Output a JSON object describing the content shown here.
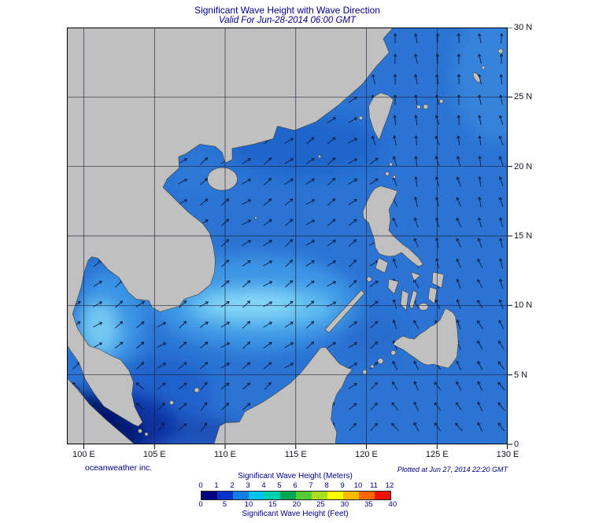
{
  "header": {
    "title": "Significant Wave Height with Wave Direction",
    "subtitle": "Valid For Jun-28-2014 06:00 GMT"
  },
  "axes": {
    "lat_labels": [
      "30 N",
      "25 N",
      "20 N",
      "15 N",
      "10 N",
      "5 N",
      "0"
    ],
    "lon_labels": [
      "100 E",
      "105 E",
      "110 E",
      "115 E",
      "120 E",
      "125 E",
      "130 E"
    ]
  },
  "footer": {
    "credit": "oceanweather inc.",
    "plotted": "Plotted at Jun 27, 2014 22:20 GMT"
  },
  "legend": {
    "meters_label": "Significant Wave Height (Meters)",
    "feet_label": "Significant Wave Height (Feet)",
    "meters_ticks": [
      "0",
      "1",
      "2",
      "3",
      "4",
      "5",
      "6",
      "7",
      "8",
      "9",
      "10",
      "11",
      "12"
    ],
    "feet_ticks": [
      "0",
      "5",
      "10",
      "15",
      "20",
      "25",
      "30",
      "35",
      "40"
    ],
    "colors": [
      "#000080",
      "#0033cc",
      "#0f7fe6",
      "#00c3f0",
      "#00cfae",
      "#00a651",
      "#55cc33",
      "#aadd22",
      "#ffff00",
      "#ffbb00",
      "#ff6600",
      "#ee1100"
    ],
    "meters_range": [
      0,
      12
    ],
    "feet_range": [
      0,
      40
    ]
  },
  "map_meta": {
    "lon_range_deg_e": [
      98.8,
      130
    ],
    "lat_range_deg_n": [
      0,
      30
    ],
    "sea_base_color": "#2b74d4",
    "land_color": "#c0c0c0",
    "low_wave_color": "#021a70",
    "high_wave_streak_color": "#8edcf8"
  }
}
